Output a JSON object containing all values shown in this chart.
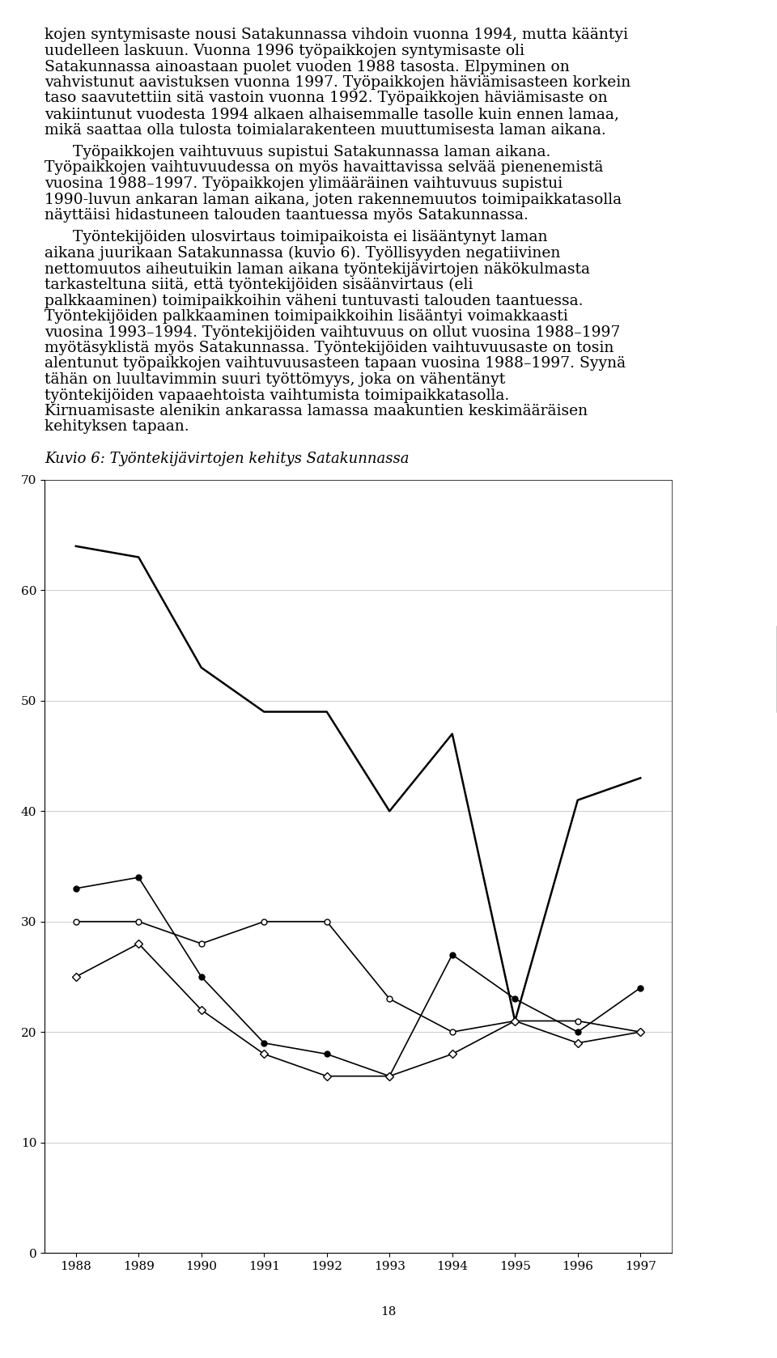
{
  "paragraphs": [
    {
      "indent": false,
      "text": "kojen syntymisaste nousi Satakunnassa vihdoin vuonna 1994, mutta kääntyi uudelleen laskuun. Vuonna 1996 työpaikkojen syntymisaste oli Satakunnassa ainoastaan puolet vuoden 1988 tasosta. Elpyminen on vahvistunut aavistuksen vuonna 1997. Työpaikkojen häviämisasteen korkein taso saavutettiin sitä vastoin vuonna 1992. Työpaikkojen häviämisaste on vakiintunut vuodesta 1994 alkaen alhaisemmalle tasolle kuin ennen lamaa, mikä saattaa olla tulosta toimialarakenteen muuttumisesta laman aikana."
    },
    {
      "indent": true,
      "text": "Työpaikkojen vaihtuvuus supistui Satakunnassa laman aikana. Työpaikkojen vaihtuvuudessa on myös havaittavissa selvää pienenemistä vuosina 1988–1997. Työpaikkojen ylimääräinen vaihtuvuus supistui 1990-luvun ankaran laman aikana, joten rakennemuutos toimipaikkatasolla näyttäisi hidastuneen talouden taantuessa myös Satakunnassa."
    },
    {
      "indent": true,
      "text": "Työntekijöiden ulosvirtaus toimipaikoista ei lisääntynyt laman aikana juurikaan Satakunnassa (kuvio 6). Työllisyyden negatiivinen nettomuutos aiheutuikin laman aikana työntekijävirtojen näkökulmasta tarkasteltuna siitä, että työntekijöiden sisäänvirtaus (eli palkkaaminen) toimipaikkoihin väheni tuntuvasti talouden taantuessa. Työntekijöiden palkkaaminen toimipaikkoihin lisääntyi voimakkaasti vuosina 1993–1994. Työntekijöiden vaihtuvuus on ollut vuosina 1988–1997 myötäsyklistä myös Satakunnassa. Työntekijöiden vaihtuvuusaste on tosin alentunut työpaikkojen vaihtuvuusasteen tapaan vuosina 1988–1997. Syynä tähän on luultavimmin suuri työttömyys, joka on vähentänyt työntekijöiden vapaaehtoista vaihtumista toimipaikkatasolla. Kirnuamisaste alenikin ankarassa lamassa maakuntien keskimääräisen kehityksen tapaan."
    }
  ],
  "caption": "Kuvio 6: Työntekijävirtojen kehitys Satakunnassa",
  "years": [
    1988,
    1989,
    1990,
    1991,
    1992,
    1993,
    1994,
    1995,
    1996,
    1997
  ],
  "WIF": [
    33,
    34,
    25,
    19,
    18,
    16,
    27,
    23,
    20,
    24
  ],
  "WOF": [
    30,
    30,
    28,
    30,
    30,
    23,
    20,
    21,
    21,
    20
  ],
  "WF": [
    64,
    63,
    53,
    49,
    49,
    40,
    47,
    21,
    41,
    43
  ],
  "CF": [
    25,
    28,
    22,
    18,
    16,
    16,
    18,
    21,
    19,
    20
  ],
  "ylim": [
    0,
    70
  ],
  "yticks": [
    0,
    10,
    20,
    30,
    40,
    50,
    60,
    70
  ],
  "page_number": "18",
  "bg_color": "#ffffff",
  "text_color": "#000000",
  "grid_color": "#cccccc",
  "text_fontsize": 13.5,
  "caption_fontsize": 13.0,
  "chars_per_line": 72,
  "indent_chars": 5
}
